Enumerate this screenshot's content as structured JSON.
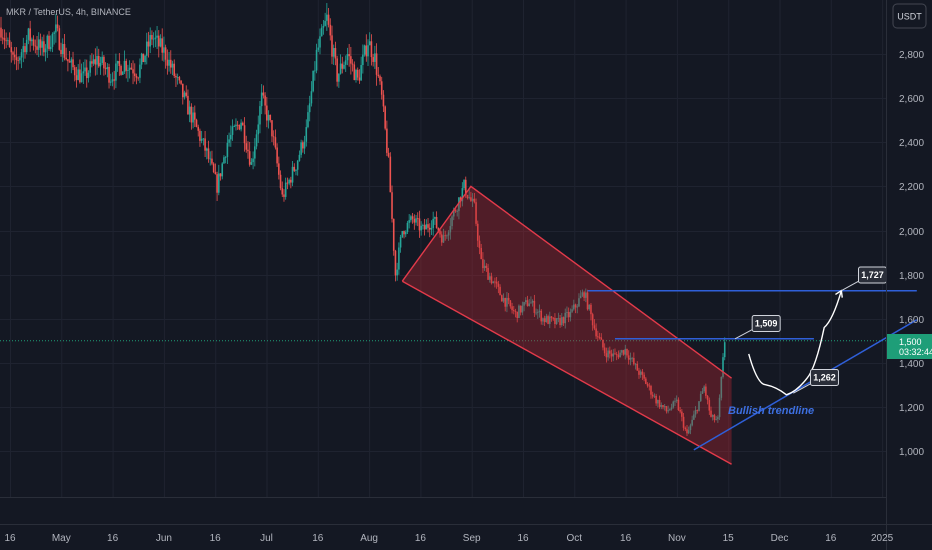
{
  "symbol_label": "MKR / TetherUS, 4h, BINANCE",
  "currency_button": "USDT",
  "chart_data": {
    "type": "candlestick",
    "title": "",
    "y_ticks": [
      "2,800",
      "2,600",
      "2,400",
      "2,200",
      "2,000",
      "1,800",
      "1,600",
      "1,400",
      "1,200",
      "1,000"
    ],
    "y_tick_values": [
      2800,
      2600,
      2400,
      2200,
      2000,
      1800,
      1600,
      1400,
      1200,
      1000
    ],
    "x_ticks": [
      "16",
      "May",
      "16",
      "Jun",
      "16",
      "Jul",
      "16",
      "Aug",
      "16",
      "Sep",
      "16",
      "Oct",
      "16",
      "Nov",
      "15",
      "Dec",
      "16",
      "2025"
    ],
    "ylim": [
      800,
      3000
    ],
    "up_color": "#26a69a",
    "down_color": "#ef5350",
    "current_price": "1,500",
    "current_price_value": 1500,
    "countdown": "03:32:44",
    "price_series": [
      {
        "d": 0,
        "p": 2920
      },
      {
        "d": 4,
        "p": 2750
      },
      {
        "d": 8,
        "p": 2880
      },
      {
        "d": 12,
        "p": 2820
      },
      {
        "d": 16,
        "p": 2900
      },
      {
        "d": 20,
        "p": 2750
      },
      {
        "d": 24,
        "p": 2690
      },
      {
        "d": 28,
        "p": 2780
      },
      {
        "d": 32,
        "p": 2700
      },
      {
        "d": 36,
        "p": 2760
      },
      {
        "d": 40,
        "p": 2720
      },
      {
        "d": 44,
        "p": 2880
      },
      {
        "d": 48,
        "p": 2800
      },
      {
        "d": 52,
        "p": 2650
      },
      {
        "d": 56,
        "p": 2500
      },
      {
        "d": 60,
        "p": 2350
      },
      {
        "d": 63,
        "p": 2200
      },
      {
        "d": 66,
        "p": 2400
      },
      {
        "d": 70,
        "p": 2500
      },
      {
        "d": 73,
        "p": 2300
      },
      {
        "d": 76,
        "p": 2600
      },
      {
        "d": 79,
        "p": 2450
      },
      {
        "d": 82,
        "p": 2150
      },
      {
        "d": 86,
        "p": 2300
      },
      {
        "d": 89,
        "p": 2450
      },
      {
        "d": 92,
        "p": 2800
      },
      {
        "d": 95,
        "p": 2960
      },
      {
        "d": 98,
        "p": 2700
      },
      {
        "d": 101,
        "p": 2800
      },
      {
        "d": 104,
        "p": 2680
      },
      {
        "d": 107,
        "p": 2860
      },
      {
        "d": 109,
        "p": 2780
      },
      {
        "d": 111,
        "p": 2600
      },
      {
        "d": 113,
        "p": 2300
      },
      {
        "d": 115,
        "p": 1800
      },
      {
        "d": 117,
        "p": 2000
      },
      {
        "d": 120,
        "p": 2050
      },
      {
        "d": 123,
        "p": 2000
      },
      {
        "d": 126,
        "p": 2050
      },
      {
        "d": 129,
        "p": 1960
      },
      {
        "d": 132,
        "p": 2080
      },
      {
        "d": 135,
        "p": 2200
      },
      {
        "d": 138,
        "p": 2100
      },
      {
        "d": 140,
        "p": 1850
      },
      {
        "d": 143,
        "p": 1780
      },
      {
        "d": 146,
        "p": 1700
      },
      {
        "d": 150,
        "p": 1620
      },
      {
        "d": 154,
        "p": 1680
      },
      {
        "d": 158,
        "p": 1600
      },
      {
        "d": 162,
        "p": 1580
      },
      {
        "d": 166,
        "p": 1620
      },
      {
        "d": 170,
        "p": 1720
      },
      {
        "d": 173,
        "p": 1560
      },
      {
        "d": 176,
        "p": 1450
      },
      {
        "d": 179,
        "p": 1430
      },
      {
        "d": 182,
        "p": 1460
      },
      {
        "d": 185,
        "p": 1380
      },
      {
        "d": 188,
        "p": 1310
      },
      {
        "d": 191,
        "p": 1230
      },
      {
        "d": 194,
        "p": 1180
      },
      {
        "d": 197,
        "p": 1220
      },
      {
        "d": 200,
        "p": 1070
      },
      {
        "d": 203,
        "p": 1200
      },
      {
        "d": 205,
        "p": 1290
      },
      {
        "d": 207,
        "p": 1150
      },
      {
        "d": 209,
        "p": 1140
      },
      {
        "d": 211,
        "p": 1500
      }
    ],
    "channel": {
      "upper": {
        "from": {
          "d": 117,
          "p": 1770
        },
        "to": {
          "d": 213,
          "p": 1330
        }
      },
      "lower": {
        "from": {
          "d": 117,
          "p": 1770
        },
        "to": {
          "d": 213,
          "p": 940
        }
      },
      "top": {
        "d": 137,
        "p": 2200
      },
      "stroke": "#e23a4a",
      "fill": "rgba(180,40,50,0.38)"
    },
    "horizontal_levels": [
      {
        "label": "1,727",
        "value": 1727,
        "from_d": 171,
        "to_d": 267,
        "color": "#2f5fd8"
      },
      {
        "label": "1,509",
        "value": 1509,
        "from_d": 179,
        "to_d": 237,
        "color": "#2f5fd8"
      }
    ],
    "trendline": {
      "label": "Bullish trendline",
      "from": {
        "d": 202,
        "p": 1005
      },
      "to": {
        "d": 267,
        "p": 1595
      },
      "color": "#2f5fd8"
    },
    "projection_path": [
      {
        "d": 218,
        "p": 1440
      },
      {
        "d": 223,
        "p": 1300
      },
      {
        "d": 229,
        "p": 1255
      },
      {
        "d": 235,
        "p": 1330
      },
      {
        "d": 240,
        "p": 1560
      },
      {
        "d": 245,
        "p": 1727
      }
    ],
    "callouts": [
      {
        "label": "1,509",
        "value": 1509,
        "anchor_d": 214,
        "box_d": 219,
        "box_p": 1610
      },
      {
        "label": "1,262",
        "value": 1262,
        "anchor_d": 231,
        "box_d": 236,
        "box_p": 1365
      },
      {
        "label": "1,727",
        "value": 1727,
        "anchor_d": 245,
        "box_d": 250,
        "box_p": 1830
      }
    ]
  }
}
